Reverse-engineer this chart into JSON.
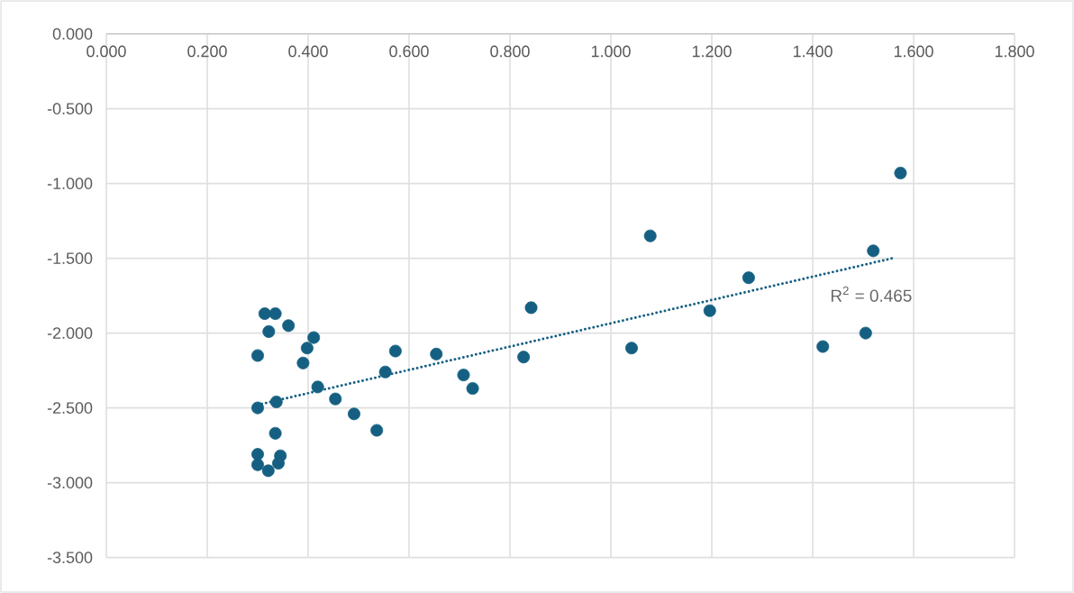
{
  "chart_data": {
    "type": "scatter",
    "xlim": [
      0,
      1.8
    ],
    "ylim": [
      -3.5,
      0
    ],
    "xticks": [
      {
        "value": 0,
        "label": "0.000"
      },
      {
        "value": 0.2,
        "label": "0.200"
      },
      {
        "value": 0.4,
        "label": "0.400"
      },
      {
        "value": 0.6,
        "label": "0.600"
      },
      {
        "value": 0.8,
        "label": "0.800"
      },
      {
        "value": 1.0,
        "label": "1.000"
      },
      {
        "value": 1.2,
        "label": "1.200"
      },
      {
        "value": 1.4,
        "label": "1.400"
      },
      {
        "value": 1.6,
        "label": "1.600"
      },
      {
        "value": 1.8,
        "label": "1.800"
      }
    ],
    "yticks": [
      {
        "value": 0,
        "label": "0.000"
      },
      {
        "value": -0.5,
        "label": "-0.500"
      },
      {
        "value": -1.0,
        "label": "-1.000"
      },
      {
        "value": -1.5,
        "label": "-1.500"
      },
      {
        "value": -2.0,
        "label": "-2.000"
      },
      {
        "value": -2.5,
        "label": "-2.500"
      },
      {
        "value": -3.0,
        "label": "-3.000"
      },
      {
        "value": -3.5,
        "label": "-3.500"
      }
    ],
    "grid": true,
    "marker": "circle",
    "series": [
      {
        "type": "scatter",
        "color": "#156082",
        "x": [
          0.314,
          0.335,
          0.322,
          0.361,
          0.3,
          0.411,
          0.398,
          0.39,
          0.419,
          0.454,
          0.491,
          0.536,
          0.553,
          0.573,
          0.654,
          0.708,
          0.726,
          0.827,
          0.842,
          0.3,
          0.337,
          0.335,
          0.3,
          0.3,
          0.321,
          0.345,
          0.341,
          1.078,
          1.52,
          1.273,
          1.196,
          1.041,
          1.42,
          1.505,
          1.574
        ],
        "values": [
          -1.87,
          -1.87,
          -1.99,
          -1.95,
          -2.15,
          -2.03,
          -2.1,
          -2.2,
          -2.36,
          -2.44,
          -2.54,
          -2.65,
          -2.26,
          -2.12,
          -2.14,
          -2.28,
          -2.37,
          -2.16,
          -1.83,
          -2.5,
          -2.46,
          -2.67,
          -2.81,
          -2.88,
          -2.92,
          -2.82,
          -2.87,
          -1.35,
          -1.45,
          -1.63,
          -1.85,
          -2.1,
          -2.09,
          -2.0,
          -0.93
        ]
      },
      {
        "type": "line",
        "color": "#156082",
        "line_style": "dotted",
        "marker": "none",
        "x": [
          0.3,
          1.558
        ],
        "values": [
          -2.48,
          -1.5
        ]
      }
    ],
    "annotations": [
      "R$^{2}$ = 0.465"
    ]
  }
}
